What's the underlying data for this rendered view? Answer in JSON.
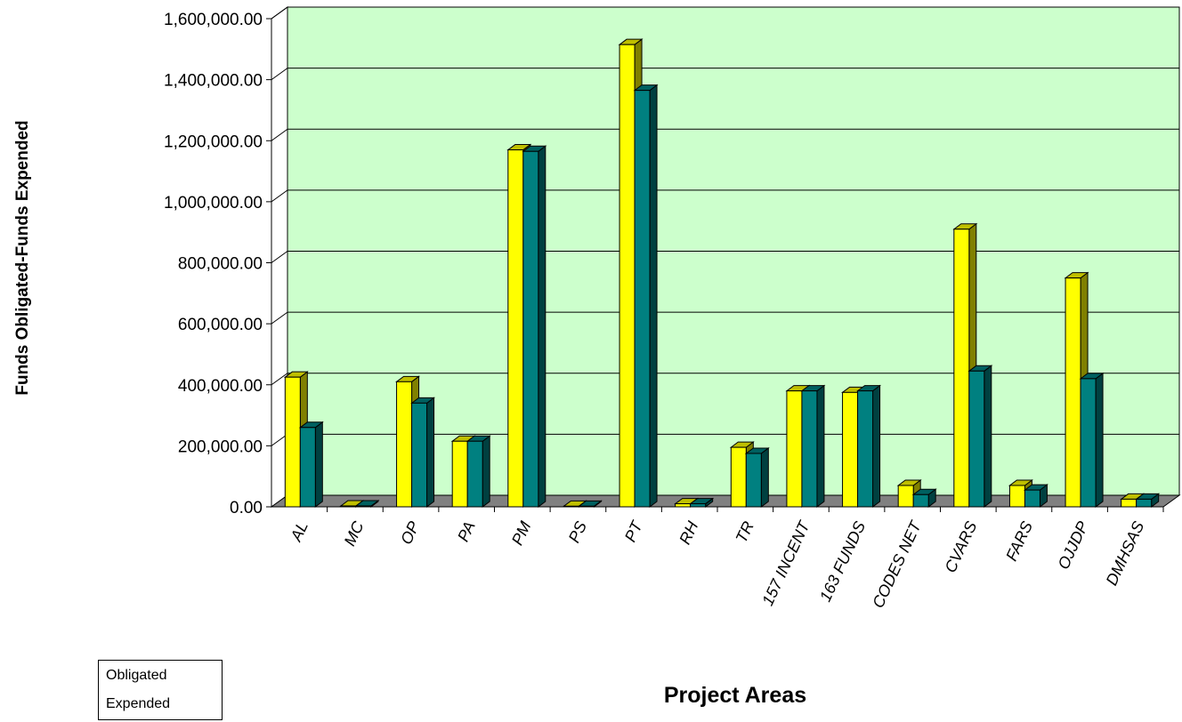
{
  "chart_data": {
    "type": "bar",
    "title": "",
    "xlabel": "Project Areas",
    "ylabel": "Funds Obligated-Funds Expended",
    "ylim": [
      0,
      1600000
    ],
    "yticks": [
      "0.00",
      "200,000.00",
      "400,000.00",
      "600,000.00",
      "800,000.00",
      "1,000,000.00",
      "1,200,000.00",
      "1,400,000.00",
      "1,600,000.00"
    ],
    "ytick_values": [
      0,
      200000,
      400000,
      600000,
      800000,
      1000000,
      1200000,
      1400000,
      1600000
    ],
    "categories": [
      "AL",
      "MC",
      "OP",
      "PA",
      "PM",
      "PS",
      "PT",
      "RH",
      "TR",
      "157 INCENT",
      "163 FUNDS",
      "CODES NET",
      "CVARS",
      "FARS",
      "OJJDP",
      "DMHSAS"
    ],
    "series": [
      {
        "name": "Obligated",
        "color": "#ffff00",
        "values": [
          425000,
          3000,
          410000,
          215000,
          1170000,
          2000,
          1515000,
          10000,
          195000,
          380000,
          375000,
          70000,
          910000,
          70000,
          750000,
          25000
        ]
      },
      {
        "name": "Expended",
        "color": "#008080",
        "values": [
          260000,
          3000,
          340000,
          215000,
          1165000,
          2000,
          1365000,
          10000,
          175000,
          380000,
          380000,
          40000,
          445000,
          55000,
          420000,
          25000
        ]
      }
    ],
    "grid": true,
    "plot_background": "#ccffcc",
    "floor_color": "#808080",
    "legend_position": "bottom-left"
  },
  "legend": {
    "items": [
      {
        "label": "Obligated"
      },
      {
        "label": "Expended"
      }
    ]
  }
}
